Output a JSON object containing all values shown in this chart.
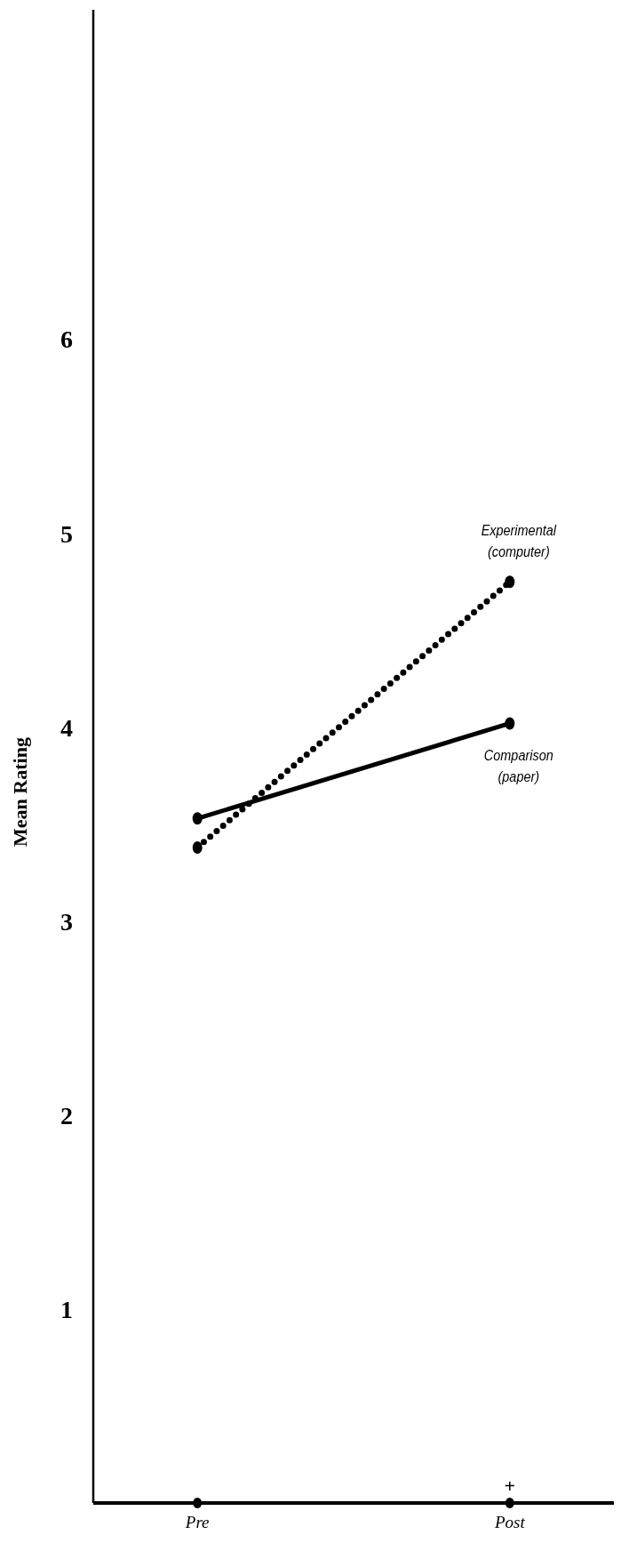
{
  "chart_data": {
    "type": "line",
    "ylabel": "Mean Rating",
    "categories": [
      "Pre",
      "Post"
    ],
    "ylim": [
      0,
      7.7
    ],
    "yticks": [
      1,
      2,
      3,
      4,
      5,
      6
    ],
    "marker": "circle",
    "series": [
      {
        "name": "Experimental (computer)",
        "color": "#000000",
        "values": [
          3.38,
          4.75
        ],
        "line_style": "dotted"
      },
      {
        "name": "Comparison (paper)",
        "color": "#000000",
        "values": [
          3.53,
          4.02
        ],
        "line_style": "solid"
      }
    ],
    "annotations": [
      "+"
    ]
  }
}
